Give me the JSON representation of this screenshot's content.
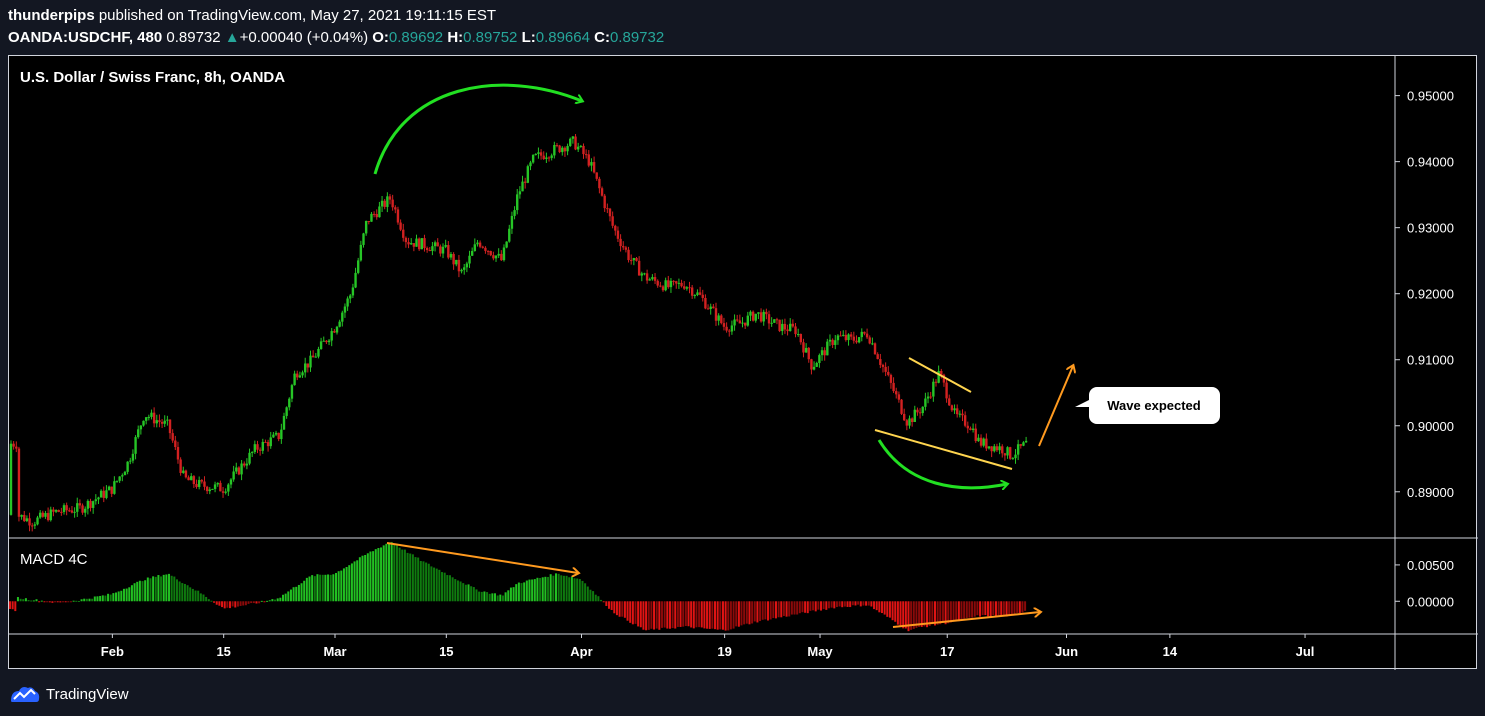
{
  "header": {
    "author": "thunderpips",
    "published_text": "published on TradingView.com, May 27, 2021 19:11:15 EST",
    "symbol": "OANDA:USDCHF, 480",
    "last_price": "0.89732",
    "arrow": "▲",
    "change": "+0.00040 (+0.04%)",
    "open_label": "O:",
    "open": "0.89692",
    "high_label": "H:",
    "high": "0.89752",
    "low_label": "L:",
    "low": "0.89664",
    "close_label": "C:",
    "close": "0.89732"
  },
  "footer": {
    "brand": "TradingView"
  },
  "colors": {
    "background": "#000000",
    "up": "#26c526",
    "down": "#d32121",
    "accent": "#26a69a",
    "annotation_green": "#22e022",
    "annotation_orange": "#ff9a1f",
    "annotation_yellow": "#ffd54f"
  },
  "chart_data": [
    {
      "type": "candlestick",
      "title": "U.S. Dollar / Swiss Franc, 8h, OANDA",
      "ylim": [
        0.883,
        0.956
      ],
      "y_ticks": [
        "0.95000",
        "0.94000",
        "0.93000",
        "0.92000",
        "0.91000",
        "0.90000",
        "0.89000"
      ],
      "x_ticks": [
        "Feb",
        "15",
        "Mar",
        "15",
        "Apr",
        "19",
        "May",
        "17",
        "Jun",
        "14",
        "Jul"
      ],
      "close_path": [
        [
          "Jan 20",
          0.8865
        ],
        [
          "Jan 22",
          0.8855
        ],
        [
          "Jan 25",
          0.887
        ],
        [
          "Jan 28",
          0.8875
        ],
        [
          "Feb 1",
          0.8905
        ],
        [
          "Feb 3",
          0.8945
        ],
        [
          "Feb 5",
          0.9018
        ],
        [
          "Feb 8",
          0.9
        ],
        [
          "Feb 10",
          0.892
        ],
        [
          "Feb 12",
          0.891
        ],
        [
          "Feb 15",
          0.8905
        ],
        [
          "Feb 17",
          0.8935
        ],
        [
          "Feb 19",
          0.8965
        ],
        [
          "Feb 22",
          0.8985
        ],
        [
          "Feb 24",
          0.908
        ],
        [
          "Feb 26",
          0.9098
        ],
        [
          "Mar 1",
          0.915
        ],
        [
          "Mar 3",
          0.92
        ],
        [
          "Mar 5",
          0.931
        ],
        [
          "Mar 8",
          0.9345
        ],
        [
          "Mar 10",
          0.928
        ],
        [
          "Mar 12",
          0.9275
        ],
        [
          "Mar 15",
          0.9265
        ],
        [
          "Mar 17",
          0.923
        ],
        [
          "Mar 19",
          0.928
        ],
        [
          "Mar 22",
          0.925
        ],
        [
          "Mar 24",
          0.935
        ],
        [
          "Mar 26",
          0.9405
        ],
        [
          "Mar 29",
          0.942
        ],
        [
          "Mar 31",
          0.943
        ],
        [
          "Apr 2",
          0.94
        ],
        [
          "Apr 5",
          0.93
        ],
        [
          "Apr 7",
          0.9255
        ],
        [
          "Apr 9",
          0.9225
        ],
        [
          "Apr 12",
          0.921
        ],
        [
          "Apr 14",
          0.9215
        ],
        [
          "Apr 16",
          0.9195
        ],
        [
          "Apr 19",
          0.915
        ],
        [
          "Apr 21",
          0.9155
        ],
        [
          "Apr 23",
          0.917
        ],
        [
          "Apr 26",
          0.915
        ],
        [
          "Apr 28",
          0.9145
        ],
        [
          "Apr 30",
          0.909
        ],
        [
          "May 3",
          0.9135
        ],
        [
          "May 5",
          0.913
        ],
        [
          "May 7",
          0.914
        ],
        [
          "May 10",
          0.906
        ],
        [
          "May 12",
          0.9005
        ],
        [
          "May 14",
          0.903
        ],
        [
          "May 16",
          0.908
        ],
        [
          "May 18",
          0.9015
        ],
        [
          "May 20",
          0.9
        ],
        [
          "May 21",
          0.8975
        ],
        [
          "May 24",
          0.8965
        ],
        [
          "May 25",
          0.8955
        ],
        [
          "May 27",
          0.8973
        ]
      ],
      "annotations": {
        "callout": "Wave expected"
      }
    },
    {
      "type": "histogram",
      "title": "MACD 4C",
      "ylim": [
        -0.0045,
        0.0087
      ],
      "y_ticks": [
        "0.00500",
        "0.00000"
      ],
      "hist_path": [
        [
          "Jan 20",
          0.0005
        ],
        [
          "Jan 25",
          -0.0002
        ],
        [
          "Jan 28",
          0.0002
        ],
        [
          "Feb 1",
          0.001
        ],
        [
          "Feb 5",
          0.003
        ],
        [
          "Feb 8",
          0.0038
        ],
        [
          "Feb 12",
          0.0012
        ],
        [
          "Feb 15",
          -0.001
        ],
        [
          "Feb 19",
          -0.0003
        ],
        [
          "Feb 22",
          0.0005
        ],
        [
          "Feb 26",
          0.0035
        ],
        [
          "Mar 1",
          0.0038
        ],
        [
          "Mar 5",
          0.0065
        ],
        [
          "Mar 8",
          0.0082
        ],
        [
          "Mar 12",
          0.0055
        ],
        [
          "Mar 15",
          0.0038
        ],
        [
          "Mar 19",
          0.0015
        ],
        [
          "Mar 22",
          0.0008
        ],
        [
          "Mar 24",
          0.0025
        ],
        [
          "Mar 29",
          0.0038
        ],
        [
          "Apr 1",
          0.003
        ],
        [
          "Apr 5",
          -0.0015
        ],
        [
          "Apr 9",
          -0.004
        ],
        [
          "Apr 14",
          -0.0035
        ],
        [
          "Apr 19",
          -0.004
        ],
        [
          "Apr 23",
          -0.0028
        ],
        [
          "Apr 28",
          -0.0018
        ],
        [
          "May 3",
          -0.0008
        ],
        [
          "May 7",
          -0.0005
        ],
        [
          "May 10",
          -0.0025
        ],
        [
          "May 12",
          -0.004
        ],
        [
          "May 14",
          -0.0035
        ],
        [
          "May 18",
          -0.0028
        ],
        [
          "May 21",
          -0.002
        ],
        [
          "May 25",
          -0.002
        ],
        [
          "May 27",
          -0.0012
        ]
      ]
    }
  ]
}
